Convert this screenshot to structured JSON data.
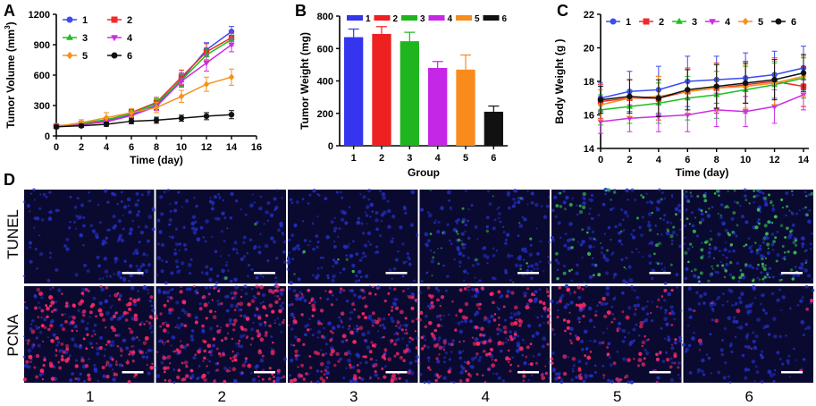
{
  "panel_labels": [
    "A",
    "B",
    "C",
    "D"
  ],
  "chart_data": [
    {
      "panel": "A",
      "type": "line",
      "title": "",
      "xlabel": "Time (day)",
      "ylabel_main": "Tumor Volume (mm",
      "ylabel_sup": "3",
      "ylabel_end": ")",
      "xlim": [
        0,
        16
      ],
      "ylim": [
        0,
        1200
      ],
      "xticks": [
        0,
        2,
        4,
        6,
        8,
        10,
        12,
        14,
        16
      ],
      "yticks": [
        0,
        300,
        600,
        900,
        1200
      ],
      "x": [
        0,
        2,
        4,
        6,
        8,
        10,
        12,
        14
      ],
      "legend": "top-left",
      "series": [
        {
          "name": "1",
          "color": "#3a4cf0",
          "marker": "circle",
          "values": [
            100,
            115,
            140,
            210,
            300,
            560,
            850,
            1030
          ],
          "errors": [
            10,
            15,
            20,
            30,
            40,
            60,
            70,
            50
          ]
        },
        {
          "name": "2",
          "color": "#ef2b2b",
          "marker": "square",
          "values": [
            95,
            120,
            150,
            230,
            330,
            580,
            830,
            970
          ],
          "errors": [
            10,
            15,
            20,
            30,
            50,
            70,
            80,
            60
          ]
        },
        {
          "name": "3",
          "color": "#19c21f",
          "marker": "triangle",
          "values": [
            95,
            125,
            160,
            220,
            320,
            550,
            800,
            950
          ],
          "errors": [
            10,
            15,
            25,
            30,
            45,
            60,
            70,
            60
          ]
        },
        {
          "name": "4",
          "color": "#cc2de3",
          "marker": "triangle-down",
          "values": [
            90,
            110,
            140,
            200,
            290,
            540,
            720,
            900
          ],
          "errors": [
            10,
            15,
            20,
            30,
            40,
            60,
            80,
            70
          ]
        },
        {
          "name": "5",
          "color": "#f5911e",
          "marker": "diamond",
          "values": [
            95,
            130,
            180,
            230,
            280,
            390,
            510,
            580
          ],
          "errors": [
            10,
            30,
            50,
            40,
            50,
            60,
            70,
            80
          ]
        },
        {
          "name": "6",
          "color": "#111111",
          "marker": "circle",
          "values": [
            90,
            100,
            115,
            145,
            155,
            175,
            195,
            210
          ],
          "errors": [
            10,
            15,
            20,
            25,
            30,
            30,
            35,
            40
          ]
        }
      ]
    },
    {
      "panel": "B",
      "type": "bar",
      "title": "",
      "xlabel": "Group",
      "ylabel": "Tumor Weight (mg)",
      "ylim": [
        0,
        800
      ],
      "yticks": [
        0,
        200,
        400,
        600,
        800
      ],
      "categories": [
        "1",
        "2",
        "3",
        "4",
        "5",
        "6"
      ],
      "values": [
        670,
        690,
        645,
        480,
        470,
        210
      ],
      "errors": [
        50,
        45,
        55,
        40,
        90,
        35
      ],
      "colors": [
        "#3535f0",
        "#ef2020",
        "#1fb51f",
        "#c427e6",
        "#f98b1d",
        "#111111"
      ],
      "legend": "top",
      "series_names": [
        "1",
        "2",
        "3",
        "4",
        "5",
        "6"
      ]
    },
    {
      "panel": "C",
      "type": "line",
      "title": "",
      "xlabel": "Time (day)",
      "ylabel": "Body Weight (g )",
      "xlim": [
        0,
        14
      ],
      "ylim": [
        14,
        22
      ],
      "xticks": [
        0,
        2,
        4,
        6,
        8,
        10,
        12,
        14
      ],
      "yticks": [
        14,
        16,
        18,
        20,
        22
      ],
      "x": [
        0,
        2,
        4,
        6,
        8,
        10,
        12,
        14
      ],
      "legend": "top",
      "series": [
        {
          "name": "1",
          "color": "#3a4cf0",
          "marker": "circle",
          "values": [
            17.0,
            17.4,
            17.5,
            18.0,
            18.1,
            18.2,
            18.4,
            18.8
          ],
          "errors": [
            0.9,
            1.2,
            1.4,
            1.5,
            1.4,
            1.5,
            1.4,
            1.3
          ]
        },
        {
          "name": "2",
          "color": "#ef2b2b",
          "marker": "square",
          "values": [
            16.8,
            17.0,
            17.0,
            17.4,
            17.6,
            17.8,
            18.0,
            17.7
          ],
          "errors": [
            1.0,
            1.1,
            1.3,
            1.4,
            1.5,
            1.4,
            1.4,
            1.2
          ]
        },
        {
          "name": "3",
          "color": "#19c21f",
          "marker": "triangle",
          "values": [
            16.3,
            16.5,
            16.7,
            17.0,
            17.2,
            17.5,
            17.8,
            18.2
          ],
          "errors": [
            0.9,
            1.0,
            1.2,
            1.3,
            1.4,
            1.4,
            1.3,
            1.2
          ]
        },
        {
          "name": "4",
          "color": "#cc2de3",
          "marker": "triangle-down",
          "values": [
            15.6,
            15.8,
            15.9,
            16.0,
            16.3,
            16.2,
            16.5,
            17.2
          ],
          "errors": [
            0.7,
            0.8,
            0.9,
            1.0,
            1.0,
            0.9,
            1.0,
            0.9
          ]
        },
        {
          "name": "5",
          "color": "#f5911e",
          "marker": "diamond",
          "values": [
            16.6,
            17.0,
            17.1,
            17.4,
            17.6,
            17.7,
            17.9,
            18.3
          ],
          "errors": [
            0.9,
            1.1,
            1.2,
            1.3,
            1.4,
            1.3,
            1.3,
            1.2
          ]
        },
        {
          "name": "6",
          "color": "#111111",
          "marker": "circle",
          "values": [
            16.9,
            17.1,
            17.0,
            17.5,
            17.7,
            17.9,
            18.1,
            18.5
          ],
          "errors": [
            0.8,
            1.0,
            1.1,
            1.2,
            1.3,
            1.2,
            1.2,
            1.1
          ]
        }
      ]
    }
  ],
  "micrographs": {
    "row_labels": [
      "TUNEL",
      "PCNA"
    ],
    "column_labels": [
      "1",
      "2",
      "3",
      "4",
      "5",
      "6"
    ],
    "tunel_green_level": [
      0.0,
      0.02,
      0.03,
      0.15,
      0.35,
      0.9
    ],
    "pcna_red_level": [
      0.9,
      0.95,
      0.85,
      0.8,
      0.5,
      0.05
    ],
    "colors": {
      "blue": "#2430c8",
      "green": "#3fdc5a",
      "red": "#ff2a6a",
      "background": "#0a0a30"
    }
  }
}
